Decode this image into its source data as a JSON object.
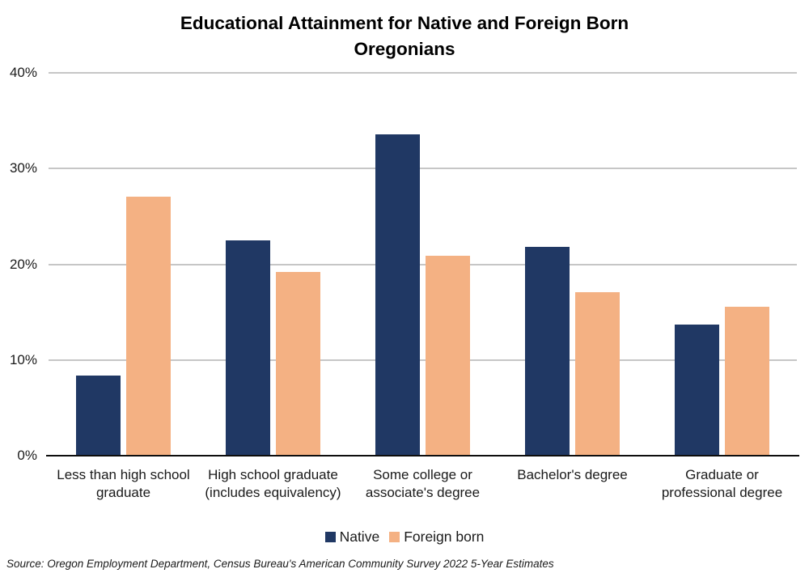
{
  "chart_data": {
    "type": "bar",
    "title": "Educational Attainment for Native and Foreign Born Oregonians",
    "categories": [
      "Less than high school graduate",
      "High school graduate (includes equivalency)",
      "Some college or associate's degree",
      "Bachelor's degree",
      "Graduate or professional degree"
    ],
    "series": [
      {
        "name": "Native",
        "color": "#203864",
        "values": [
          8.4,
          22.5,
          33.6,
          21.8,
          13.7
        ]
      },
      {
        "name": "Foreign born",
        "color": "#F4B183",
        "values": [
          27.1,
          19.2,
          20.9,
          17.1,
          15.6
        ]
      }
    ],
    "xlabel": "",
    "ylabel": "",
    "y_ticks": [
      "0%",
      "10%",
      "20%",
      "30%",
      "40%"
    ],
    "ylim": [
      0,
      40
    ],
    "grid": true,
    "gridline_color": "#c6c6c6",
    "axis_color": "#0d0d0d",
    "legend_position": "bottom",
    "source": "Source: Oregon Employment Department, Census Bureau's American Community Survey 2022 5-Year Estimates"
  }
}
